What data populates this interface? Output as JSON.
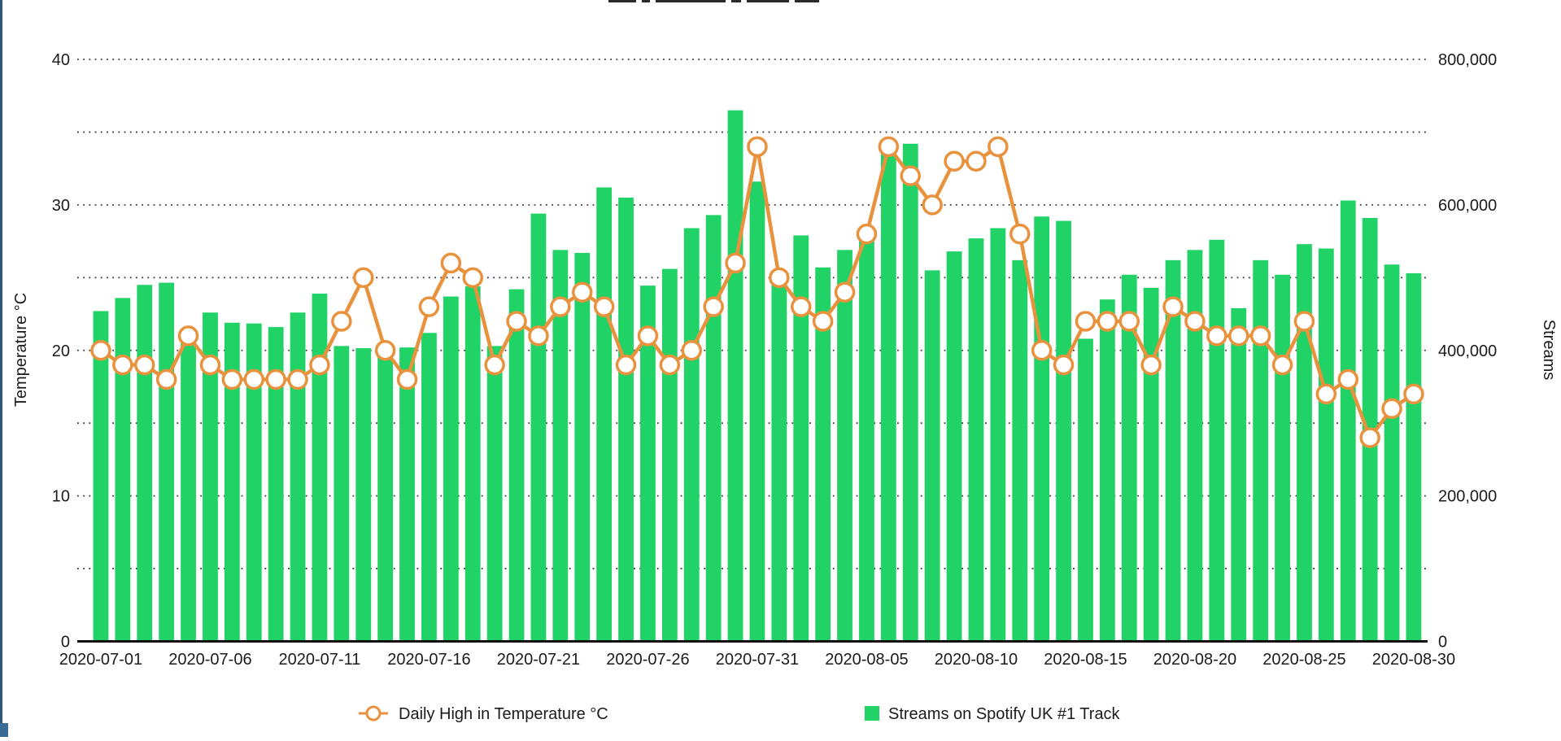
{
  "window": {
    "left_edge_color": "#2e5a78",
    "corner_accent_color": "#3a6b94"
  },
  "chart_data": {
    "type": "bar",
    "subtype": "dual-axis bar + line combo, daily time series",
    "x": [
      "2020-07-01",
      "2020-07-02",
      "2020-07-03",
      "2020-07-04",
      "2020-07-05",
      "2020-07-06",
      "2020-07-07",
      "2020-07-08",
      "2020-07-09",
      "2020-07-10",
      "2020-07-11",
      "2020-07-12",
      "2020-07-13",
      "2020-07-14",
      "2020-07-15",
      "2020-07-16",
      "2020-07-17",
      "2020-07-18",
      "2020-07-19",
      "2020-07-20",
      "2020-07-21",
      "2020-07-22",
      "2020-07-23",
      "2020-07-24",
      "2020-07-25",
      "2020-07-26",
      "2020-07-27",
      "2020-07-28",
      "2020-07-29",
      "2020-07-30",
      "2020-07-31",
      "2020-08-01",
      "2020-08-02",
      "2020-08-03",
      "2020-08-04",
      "2020-08-05",
      "2020-08-06",
      "2020-08-07",
      "2020-08-08",
      "2020-08-09",
      "2020-08-10",
      "2020-08-11",
      "2020-08-12",
      "2020-08-13",
      "2020-08-14",
      "2020-08-15",
      "2020-08-16",
      "2020-08-17",
      "2020-08-18",
      "2020-08-19",
      "2020-08-20",
      "2020-08-21",
      "2020-08-22",
      "2020-08-23",
      "2020-08-24",
      "2020-08-25",
      "2020-08-26",
      "2020-08-27",
      "2020-08-28",
      "2020-08-29",
      "2020-08-30"
    ],
    "x_tick_labels": [
      "2020-07-01",
      "2020-07-06",
      "2020-07-11",
      "2020-07-16",
      "2020-07-21",
      "2020-07-26",
      "2020-07-31",
      "2020-08-05",
      "2020-08-10",
      "2020-08-15",
      "2020-08-20",
      "2020-08-25",
      "2020-08-30"
    ],
    "series": [
      {
        "name": "Daily High in Temperature °C",
        "type": "line",
        "axis": "left",
        "color": "#e8923d",
        "marker": "hollow-circle",
        "values": [
          20,
          19,
          19,
          18,
          21,
          19,
          18,
          18,
          18,
          18,
          19,
          22,
          25,
          20,
          18,
          23,
          26,
          25,
          19,
          22,
          21,
          23,
          24,
          23,
          19,
          21,
          19,
          20,
          23,
          26,
          34,
          25,
          23,
          22,
          24,
          28,
          34,
          32,
          30,
          33,
          33,
          34,
          28,
          20,
          19,
          22,
          22,
          22,
          19,
          23,
          22,
          21,
          21,
          21,
          19,
          22,
          17,
          18,
          14,
          16,
          17
        ]
      },
      {
        "name": "Streams on Spotify UK #1 Track",
        "type": "bar",
        "axis": "right",
        "color": "#21d366",
        "values": [
          454000,
          472000,
          490000,
          493000,
          410000,
          452000,
          438000,
          437000,
          432000,
          452000,
          478000,
          406000,
          403000,
          402000,
          404000,
          424000,
          474000,
          488000,
          406000,
          484000,
          588000,
          538000,
          534000,
          624000,
          610000,
          489000,
          512000,
          568000,
          586000,
          730000,
          632000,
          506000,
          558000,
          514000,
          538000,
          554000,
          686000,
          684000,
          510000,
          536000,
          554000,
          568000,
          524000,
          584000,
          578000,
          416000,
          470000,
          504000,
          486000,
          524000,
          538000,
          552000,
          458000,
          524000,
          504000,
          546000,
          540000,
          606000,
          582000,
          518000,
          506000
        ]
      }
    ],
    "left_axis": {
      "label": "Temperature °C",
      "min": 0,
      "max": 40,
      "tick_values": [
        0,
        10,
        20,
        30,
        40
      ],
      "tick_labels": [
        "0",
        "10",
        "20",
        "30",
        "40"
      ]
    },
    "right_axis": {
      "label": "Streams",
      "min": 0,
      "max": 800000,
      "tick_values": [
        0,
        200000,
        400000,
        600000,
        800000
      ],
      "tick_labels": [
        "0",
        "200,000",
        "400,000",
        "600,000",
        "800,000"
      ]
    },
    "grid": {
      "shown": true,
      "style": "dotted",
      "interval_right_axis": 100000,
      "interval_left_axis": 5,
      "color": "#3a3a3a"
    },
    "legend": {
      "position": "bottom",
      "items": [
        "Daily High in Temperature °C",
        "Streams on Spotify UK #1 Track"
      ]
    }
  }
}
